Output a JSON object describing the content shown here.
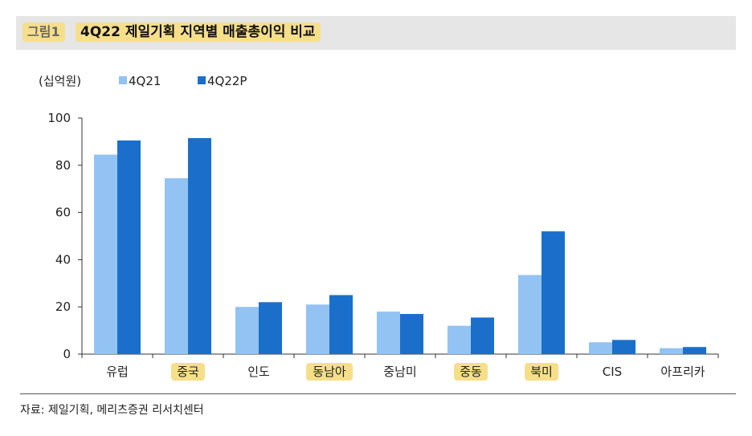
{
  "header": {
    "figure_label": "그림1",
    "title": "4Q22 제일기획 지역별 매출총이익 비교"
  },
  "footer": {
    "source": "자료: 제일기획, 메리츠증권 리서치센터"
  },
  "colors": {
    "series_light": "#92c3f3",
    "series_dark": "#1a6fcb",
    "highlight": "#f6df8a",
    "title_bg": "#e6e6e6"
  },
  "chart_data": {
    "type": "bar",
    "unit_label": "(십억원)",
    "categories": [
      "유럽",
      "중국",
      "인도",
      "동남아",
      "중남미",
      "중동",
      "북미",
      "CIS",
      "아프리카"
    ],
    "highlighted_categories": [
      "중국",
      "동남아",
      "중동",
      "북미"
    ],
    "series": [
      {
        "name": "4Q21",
        "color": "#92c3f3",
        "values": [
          84.5,
          74.5,
          20,
          21,
          18,
          12,
          33.5,
          5,
          2.5
        ]
      },
      {
        "name": "4Q22P",
        "color": "#1a6fcb",
        "values": [
          90.5,
          91.5,
          22,
          25,
          17,
          15.5,
          52,
          6,
          3
        ]
      }
    ],
    "ylim": [
      0,
      100
    ],
    "yticks": [
      0,
      20,
      40,
      60,
      80,
      100
    ],
    "legend_position": "top-left",
    "grid": false
  }
}
